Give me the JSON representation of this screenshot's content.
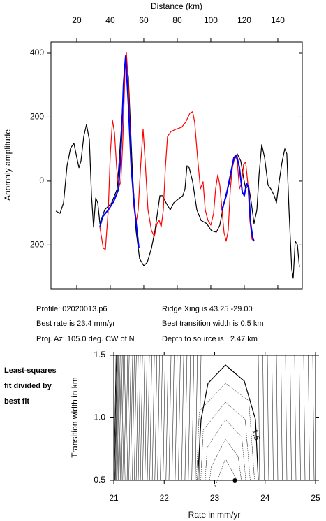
{
  "chart_data": [
    {
      "type": "line",
      "x_label": "Distance (km)",
      "y_label": "Anomaly amplitude",
      "xlim": [
        4.6,
        154.6
      ],
      "ylim": [
        -337,
        435
      ],
      "xticks": [
        20,
        40,
        60,
        80,
        100,
        120,
        140
      ],
      "yticks": [
        -200,
        0,
        200,
        400
      ],
      "series": [
        {
          "color": "#000000",
          "x": [
            7.5,
            10.0,
            12.1,
            14.2,
            16.3,
            18.3,
            20.0,
            21.3,
            22.5,
            24.2,
            25.8,
            27.5,
            28.8,
            30.0,
            31.3,
            32.5,
            33.8,
            36.7,
            40.8,
            44.2,
            46.7,
            49.2,
            50.8,
            53.3,
            55.4,
            57.5,
            60.0,
            62.1,
            64.6,
            66.7,
            69.6,
            71.3,
            73.3,
            75.8,
            77.9,
            80.4,
            83.3,
            84.6,
            85.8,
            87.1,
            89.2,
            91.7,
            94.2,
            97.5,
            100.4,
            103.3,
            105.4,
            107.1,
            108.8,
            111.3,
            113.3,
            115.8,
            117.9,
            119.6,
            120.8,
            122.5,
            124.2,
            125.8,
            127.5,
            128.8,
            130.4,
            132.1,
            134.2,
            135.8,
            137.9,
            139.2,
            140.8,
            142.5,
            144.2,
            145.4,
            146.7,
            148.3,
            149.2,
            150.4,
            151.7,
            152.9
          ],
          "values": [
            -94,
            -101,
            -68,
            48,
            103,
            118,
            74,
            42,
            63,
            140,
            177,
            129,
            -46,
            -144,
            -53,
            -68,
            -133,
            -90,
            -68,
            -24,
            173,
            392,
            326,
            20,
            -155,
            -243,
            -265,
            -254,
            -210,
            -155,
            -46,
            -46,
            -68,
            -90,
            -68,
            -57,
            -46,
            -24,
            48,
            42,
            -2,
            -90,
            -123,
            -133,
            -155,
            -160,
            -138,
            -90,
            -46,
            -2,
            59,
            85,
            63,
            9,
            -24,
            -13,
            -68,
            -133,
            -90,
            20,
            114,
            74,
            -13,
            -24,
            -46,
            -68,
            -2,
            59,
            101,
            85,
            -90,
            -276,
            -304,
            -188,
            -199,
            -269
          ]
        },
        {
          "color": "#ff0000",
          "x": [
            33.8,
            35.8,
            37.1,
            38.8,
            40.0,
            41.3,
            42.5,
            43.8,
            45.0,
            46.3,
            47.5,
            48.8,
            49.6,
            50.8,
            52.1,
            53.8,
            55.4,
            56.7,
            58.3,
            59.6,
            60.8,
            62.5,
            64.6,
            66.3,
            67.9,
            69.2,
            70.4,
            71.7,
            72.9,
            74.2,
            76.3,
            79.2,
            82.5,
            85.0,
            87.5,
            89.2,
            90.4,
            92.1,
            93.8,
            95.4,
            96.7,
            98.3,
            100.0,
            101.7,
            102.9,
            104.2,
            105.4,
            106.7,
            107.9,
            109.2,
            110.4,
            111.7,
            112.9,
            114.6,
            115.8,
            117.1,
            118.3,
            119.6,
            120.8,
            122.1,
            123.3,
            124.6,
            125.8
          ],
          "values": [
            -144,
            -210,
            -214,
            -90,
            85,
            190,
            151,
            42,
            -20,
            -2,
            129,
            348,
            403,
            304,
            107,
            -68,
            -133,
            -90,
            63,
            162,
            63,
            -90,
            -155,
            -173,
            -133,
            -123,
            -144,
            -90,
            42,
            140,
            155,
            162,
            168,
            184,
            212,
            217,
            184,
            74,
            -24,
            -2,
            -90,
            -123,
            -138,
            -101,
            -24,
            20,
            -13,
            -90,
            -160,
            -188,
            -155,
            -24,
            42,
            81,
            63,
            -24,
            -7,
            53,
            59,
            -7,
            -123,
            -182,
            -188
          ]
        },
        {
          "color": "#0000ff",
          "x": [
            33.8,
            35.4,
            38.8,
            42.1,
            45.0,
            46.7,
            47.9,
            49.2,
            50.8,
            52.5,
            54.6,
            57.1
          ],
          "values": [
            -144,
            -112,
            -90,
            -63,
            -24,
            129,
            304,
            392,
            239,
            42,
            -90,
            -210
          ]
        },
        {
          "color": "#0000ff",
          "x": [
            106.7,
            109.2,
            111.3,
            113.8,
            115.4,
            117.1,
            118.8,
            120.0,
            121.3,
            122.5,
            123.8,
            125.0,
            125.8
          ],
          "values": [
            -90,
            -46,
            9,
            74,
            81,
            42,
            -35,
            -46,
            -7,
            -20,
            -133,
            -177,
            -188
          ]
        }
      ]
    },
    {
      "type": "contour",
      "x_label": "Rate in mm/yr",
      "y_label": "Transition width in km",
      "note": [
        "Least-squares",
        "fit divided by",
        "best fit"
      ],
      "xlim": [
        21,
        25
      ],
      "ylim": [
        0.5,
        1.5
      ],
      "xticks": [
        21,
        22,
        23,
        24,
        25
      ],
      "yticks": [
        0.5,
        {
          "value": 1,
          "label": "1.0"
        },
        1.5
      ],
      "contour_label": 1.5,
      "best_point": {
        "x": 23.4,
        "y": 0.5
      }
    }
  ],
  "annotations": [
    [
      "Profile: 02020013.p6",
      "Ridge Xing is 43.25 -29.00"
    ],
    [
      "Best rate is 23.4 mm/yr",
      "Best transition width is 0.5 km"
    ],
    [
      "Proj. Az: 105.0 deg. CW of N",
      "Depth to source is   2.47 km"
    ]
  ]
}
